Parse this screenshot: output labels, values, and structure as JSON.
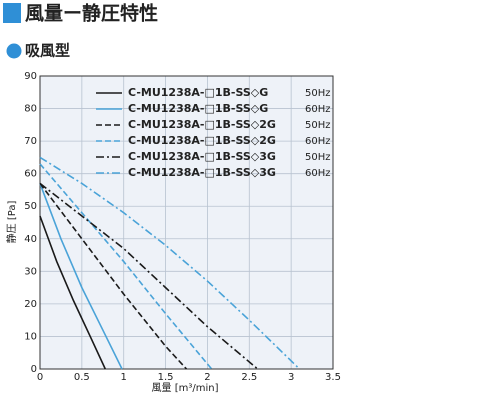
{
  "header": {
    "title": "風量ー静圧特性",
    "subtitle": "吸風型"
  },
  "chart_data": {
    "type": "line",
    "xlabel": "風量 [m³/min]",
    "ylabel": "静圧 [Pa]",
    "xlim": [
      0,
      3.5
    ],
    "ylim": [
      0,
      90
    ],
    "xticks": [
      0,
      0.5,
      1,
      1.5,
      2,
      2.5,
      3,
      3.5
    ],
    "yticks": [
      0,
      10,
      20,
      30,
      40,
      50,
      60,
      70,
      80,
      90
    ],
    "grid": true,
    "series": [
      {
        "name": "C-MU1238A-□1B-SS◇G",
        "hz": "50Hz",
        "color": "#1a1a1a",
        "dash": "solid",
        "x": [
          0,
          0.2,
          0.4,
          0.6,
          0.78
        ],
        "values": [
          47,
          33,
          21,
          10,
          0
        ]
      },
      {
        "name": "C-MU1238A-□1B-SS◇G",
        "hz": "60Hz",
        "color": "#4aa3d8",
        "dash": "solid",
        "x": [
          0,
          0.25,
          0.5,
          0.75,
          0.98
        ],
        "values": [
          57,
          40,
          25,
          12,
          0
        ]
      },
      {
        "name": "C-MU1238A-□1B-SS◇2G",
        "hz": "50Hz",
        "color": "#1a1a1a",
        "dash": "dashed",
        "x": [
          0,
          0.5,
          1,
          1.5,
          1.75
        ],
        "values": [
          57,
          40,
          23,
          7,
          0
        ]
      },
      {
        "name": "C-MU1238A-□1B-SS◇2G",
        "hz": "60Hz",
        "color": "#4aa3d8",
        "dash": "dashed",
        "x": [
          0,
          0.5,
          1,
          1.5,
          2.05
        ],
        "values": [
          63,
          48,
          33,
          17,
          0
        ]
      },
      {
        "name": "C-MU1238A-□1B-SS◇3G",
        "hz": "50Hz",
        "color": "#1a1a1a",
        "dash": "dashdot",
        "x": [
          0,
          0.5,
          1,
          1.5,
          2,
          2.6
        ],
        "values": [
          57,
          47,
          37,
          25,
          13,
          0
        ]
      },
      {
        "name": "C-MU1238A-□1B-SS◇3G",
        "hz": "60Hz",
        "color": "#4aa3d8",
        "dash": "dashdot",
        "x": [
          0,
          0.5,
          1,
          1.5,
          2,
          2.5,
          3.1
        ],
        "values": [
          65,
          57,
          48,
          38,
          27,
          15,
          0
        ]
      }
    ]
  }
}
